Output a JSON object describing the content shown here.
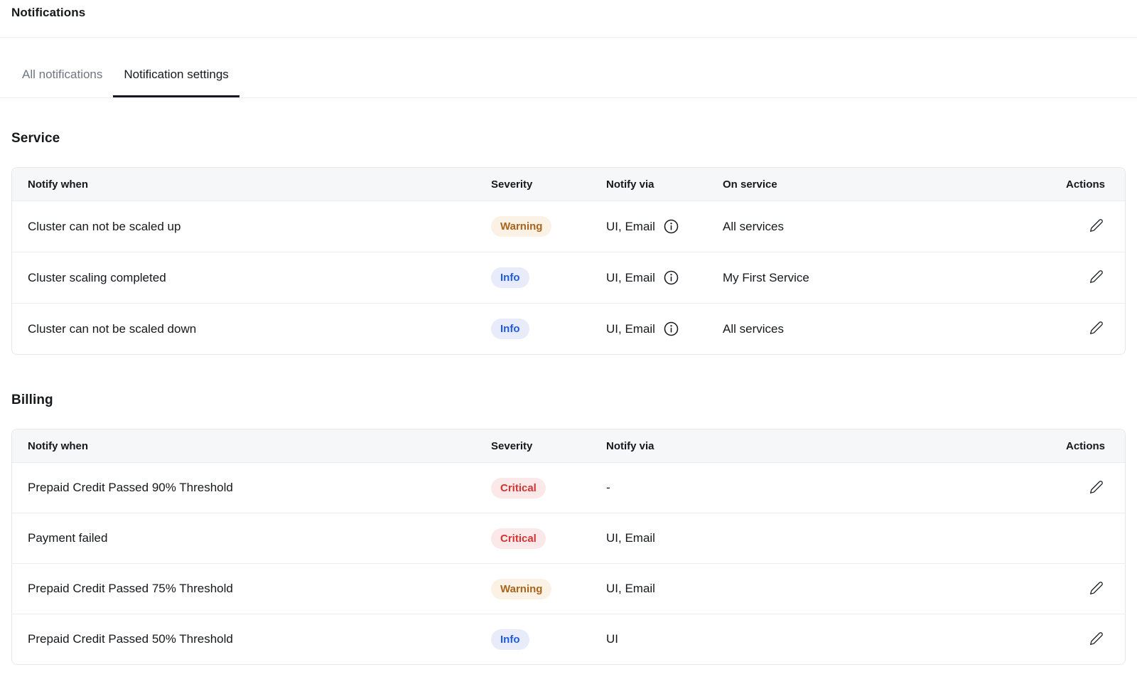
{
  "page": {
    "title": "Notifications"
  },
  "tabs": [
    {
      "label": "All notifications",
      "active": false
    },
    {
      "label": "Notification settings",
      "active": true
    }
  ],
  "severity_styles": {
    "Warning": {
      "bg": "#FBF1E4",
      "text": "#A9641C"
    },
    "Info": {
      "bg": "#E7EBFA",
      "text": "#1F5AE0"
    },
    "Critical": {
      "bg": "#FBE9E9",
      "text": "#D43333"
    }
  },
  "sections": [
    {
      "title": "Service",
      "columns": [
        "Notify when",
        "Severity",
        "Notify via",
        "On service",
        "Actions"
      ],
      "rows": [
        {
          "notify_when": "Cluster can not be scaled up",
          "severity": "Warning",
          "notify_via": "UI, Email",
          "notify_via_info": true,
          "on_service": "All services",
          "editable": true
        },
        {
          "notify_when": "Cluster scaling completed",
          "severity": "Info",
          "notify_via": "UI, Email",
          "notify_via_info": true,
          "on_service": "My First Service",
          "editable": true
        },
        {
          "notify_when": "Cluster can not be scaled down",
          "severity": "Info",
          "notify_via": "UI, Email",
          "notify_via_info": true,
          "on_service": "All services",
          "editable": true
        }
      ]
    },
    {
      "title": "Billing",
      "columns": [
        "Notify when",
        "Severity",
        "Notify via",
        "Actions"
      ],
      "rows": [
        {
          "notify_when": "Prepaid Credit Passed 90% Threshold",
          "severity": "Critical",
          "notify_via": "-",
          "notify_via_info": false,
          "editable": true
        },
        {
          "notify_when": "Payment failed",
          "severity": "Critical",
          "notify_via": "UI, Email",
          "notify_via_info": false,
          "editable": false
        },
        {
          "notify_when": "Prepaid Credit Passed 75% Threshold",
          "severity": "Warning",
          "notify_via": "UI, Email",
          "notify_via_info": false,
          "editable": true
        },
        {
          "notify_when": "Prepaid Credit Passed 50% Threshold",
          "severity": "Info",
          "notify_via": "UI",
          "notify_via_info": false,
          "editable": true
        }
      ]
    }
  ]
}
